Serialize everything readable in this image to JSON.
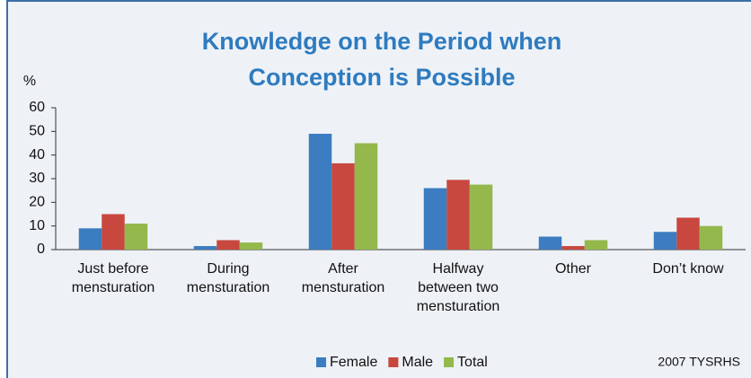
{
  "chart_data": {
    "type": "bar",
    "title": [
      "Knowledge on the Period when",
      "Conception is Possible"
    ],
    "y_label": "%",
    "source": "2007 TYSRHS",
    "categories": [
      "Just before\nmensturation",
      "During\nmensturation",
      "After\nmensturation",
      "Halfway\nbetween two\nmensturation",
      "Other",
      "Don’t know"
    ],
    "series": [
      {
        "name": "Female",
        "color": "#3b7dc0",
        "values": [
          9,
          1.5,
          49,
          26,
          5.5,
          7.5
        ]
      },
      {
        "name": "Male",
        "color": "#c8473f",
        "values": [
          15,
          4,
          36.5,
          29.5,
          1.5,
          13.5
        ]
      },
      {
        "name": "Total",
        "color": "#94b84b",
        "values": [
          11,
          3,
          45,
          27.5,
          4,
          10
        ]
      }
    ],
    "ylim": [
      0,
      60
    ],
    "yticks": [
      0,
      10,
      20,
      30,
      40,
      50,
      60
    ],
    "grid": false
  }
}
